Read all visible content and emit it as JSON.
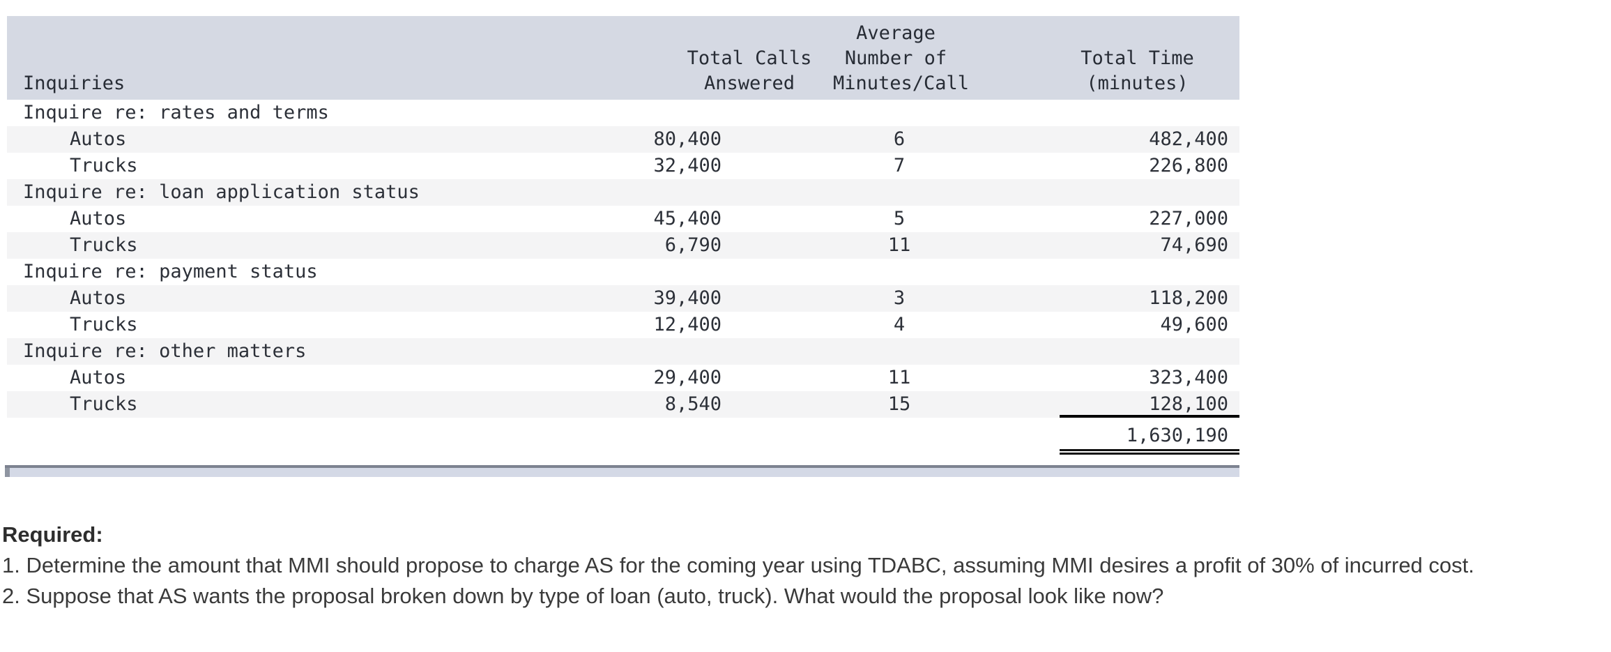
{
  "table": {
    "headers": {
      "inquiries": "Inquiries",
      "total_calls": "Total Calls\nAnswered",
      "avg_minutes": "Average\nNumber of\nMinutes/Call",
      "total_time": "Total Time\n(minutes)"
    },
    "rows": [
      {
        "label": "Inquire re: rates and terms",
        "calls": "",
        "minutes": "",
        "time": ""
      },
      {
        "label": "Autos",
        "calls": "80,400",
        "minutes": "6",
        "time": "482,400"
      },
      {
        "label": "Trucks",
        "calls": "32,400",
        "minutes": "7",
        "time": "226,800"
      },
      {
        "label": "Inquire re: loan application status",
        "calls": "",
        "minutes": "",
        "time": ""
      },
      {
        "label": "Autos",
        "calls": "45,400",
        "minutes": "5",
        "time": "227,000"
      },
      {
        "label": "Trucks",
        "calls": "6,790",
        "minutes": "11",
        "time": "74,690"
      },
      {
        "label": "Inquire re: payment status",
        "calls": "",
        "minutes": "",
        "time": ""
      },
      {
        "label": "Autos",
        "calls": "39,400",
        "minutes": "3",
        "time": "118,200"
      },
      {
        "label": "Trucks",
        "calls": "12,400",
        "minutes": "4",
        "time": "49,600"
      },
      {
        "label": "Inquire re: other matters",
        "calls": "",
        "minutes": "",
        "time": ""
      },
      {
        "label": "Autos",
        "calls": "29,400",
        "minutes": "11",
        "time": "323,400"
      },
      {
        "label": "Trucks",
        "calls": "8,540",
        "minutes": "15",
        "time": "128,100"
      }
    ],
    "grand_total": "1,630,190"
  },
  "questions": {
    "heading": "Required:",
    "items": [
      "1. Determine the amount that MMI should propose to charge AS for the coming year using TDABC, assuming MMI desires a profit of 30% of incurred cost.",
      "2. Suppose that AS wants the proposal broken down by type of loan (auto, truck). What would the proposal look like now?"
    ]
  },
  "colors": {
    "header_bg": "#d5d9e3",
    "row_stripe": "#f4f4f5",
    "scrollbar_track": "#d4d9e6",
    "scrollbar_edge": "#7d8390",
    "text": "#2c3038"
  }
}
